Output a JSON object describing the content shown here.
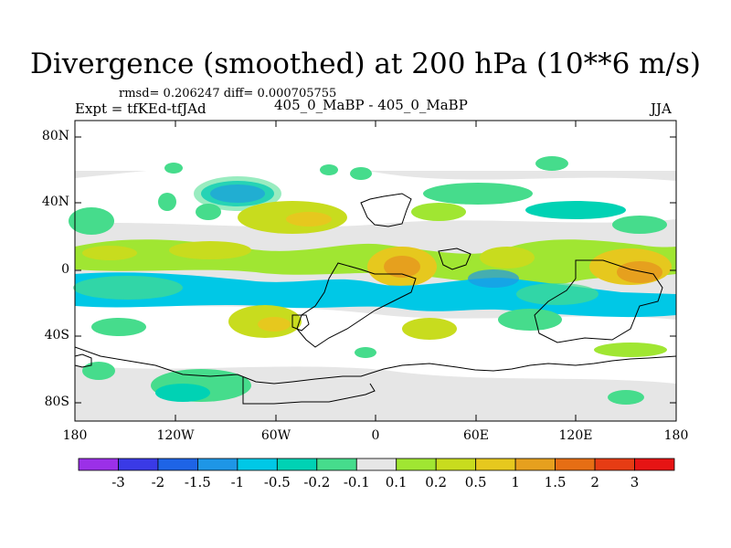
{
  "title": "Divergence (smoothed) at 200 hPa (10**6 m/s)",
  "stats_line": "rmsd= 0.206247 diff= 0.000705755",
  "experiment_line": "Expt = tfKEd-tfJAd",
  "comparison_line": "405_0_MaBP - 405_0_MaBP",
  "season": "JJA",
  "map": {
    "projection": "cylindrical equidistant",
    "lon_range": [
      -180,
      180
    ],
    "lat_range": [
      -90,
      90
    ],
    "y_tick_labels": [
      "80N",
      "40N",
      "0",
      "40S",
      "80S"
    ],
    "x_tick_labels": [
      "180",
      "120W",
      "60W",
      "0",
      "60E",
      "120E",
      "180"
    ],
    "background_fill": "#e6e6e6"
  },
  "colorbar": {
    "labels": [
      "-3",
      "-2",
      "-1.5",
      "-1",
      "-0.5",
      "-0.2",
      "-0.1",
      "0.1",
      "0.2",
      "0.5",
      "1",
      "1.5",
      "2",
      "3"
    ],
    "colors": [
      "#9b30e8",
      "#3a3ae6",
      "#1e64e6",
      "#1e96e6",
      "#00c8e6",
      "#00d2b4",
      "#46dc8c",
      "#e6e6e6",
      "#a0e632",
      "#c8dc1e",
      "#e6c81e",
      "#e6a01e",
      "#e66e14",
      "#e63c14",
      "#e61414"
    ]
  }
}
